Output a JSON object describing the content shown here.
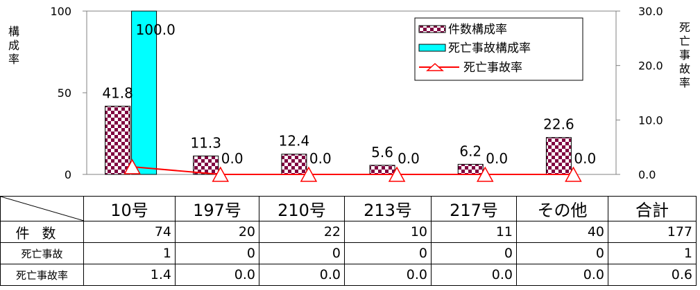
{
  "chart_data": {
    "type": "bar",
    "categories": [
      "10号",
      "197号",
      "210号",
      "213号",
      "217号",
      "その他"
    ],
    "series": [
      {
        "name": "件数構成率",
        "axis": "left",
        "kind": "bar",
        "pattern": "checkered",
        "color": "#800040",
        "values": [
          41.8,
          11.3,
          12.4,
          5.6,
          6.2,
          22.6
        ],
        "labels": [
          "41.8",
          "11.3",
          "12.4",
          "5.6",
          "6.2",
          "22.6"
        ]
      },
      {
        "name": "死亡事故構成率",
        "axis": "left",
        "kind": "bar",
        "color": "#00ffff",
        "values": [
          100.0,
          0.0,
          0.0,
          0.0,
          0.0,
          0.0
        ],
        "labels": [
          "100.0",
          "0.0",
          "0.0",
          "0.0",
          "0.0",
          "0.0"
        ]
      },
      {
        "name": "死亡事故率",
        "axis": "right",
        "kind": "line",
        "marker": "triangle",
        "color": "#ff0000",
        "values": [
          1.4,
          0.0,
          0.0,
          0.0,
          0.0,
          0.0
        ]
      }
    ],
    "left_axis": {
      "label": "構成率",
      "ticks": [
        "100",
        "50",
        "0"
      ],
      "ylim": [
        0,
        100
      ]
    },
    "right_axis": {
      "label": "死亡事故率",
      "ticks": [
        "30.0",
        "20.0",
        "10.0",
        "0.0"
      ],
      "ylim": [
        0,
        30
      ]
    },
    "legend_position": "top-right"
  },
  "table": {
    "headers": [
      "10号",
      "197号",
      "210号",
      "213号",
      "217号",
      "その他",
      "合計"
    ],
    "rows": [
      {
        "label": "件数",
        "values": [
          "74",
          "20",
          "22",
          "10",
          "11",
          "40",
          "177"
        ]
      },
      {
        "label": "死亡事故",
        "values": [
          "1",
          "0",
          "0",
          "0",
          "0",
          "0",
          "1"
        ]
      },
      {
        "label": "死亡事故率",
        "values": [
          "1.4",
          "0.0",
          "0.0",
          "0.0",
          "0.0",
          "0.0",
          "0.6"
        ]
      }
    ]
  }
}
